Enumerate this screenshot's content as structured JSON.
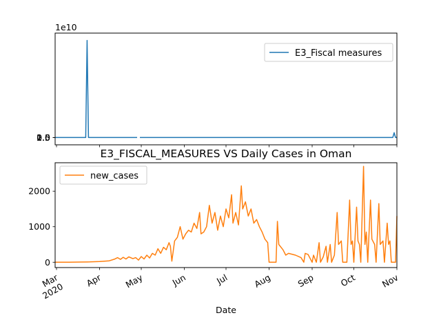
{
  "chart_data": [
    {
      "type": "line",
      "title": "",
      "xlabel": "",
      "ylabel": "",
      "offset_text": "1e10",
      "ylim": [
        -1500000000.0,
        21500000000.0
      ],
      "yticks": [
        0.0,
        0.5,
        1.0,
        1.5,
        2.0
      ],
      "ytick_labels": [
        "0.0",
        "0.5",
        "1.0",
        "1.5",
        "2.0"
      ],
      "legend_position": "upper right",
      "series": [
        {
          "name": "E3_Fiscal measures",
          "color": "#1f77b4",
          "points": [
            [
              "2020-02-29",
              0
            ],
            [
              "2020-03-22",
              0
            ],
            [
              "2020-03-23",
              20000000000.0
            ],
            [
              "2020-03-24",
              0
            ],
            [
              "2020-04-28",
              0
            ],
            [
              "2020-04-29",
              null
            ],
            [
              "2020-04-30",
              0
            ],
            [
              "2020-10-29",
              0
            ],
            [
              "2020-10-30",
              1000000000.0
            ],
            [
              "2020-10-31",
              0
            ],
            [
              "2020-11-01",
              0
            ]
          ]
        }
      ]
    },
    {
      "type": "line",
      "title": "E3_FISCAL_MEASURES VS Daily Cases in Oman",
      "xlabel": "Date",
      "ylabel": "",
      "ylim": [
        -150,
        2800
      ],
      "yticks": [
        0,
        1000,
        2000
      ],
      "ytick_labels": [
        "0",
        "1000",
        "2000"
      ],
      "legend_position": "upper left",
      "series": [
        {
          "name": "new_cases",
          "color": "#ff7f0e",
          "points": [
            [
              "2020-02-29",
              0
            ],
            [
              "2020-03-10",
              0
            ],
            [
              "2020-03-18",
              5
            ],
            [
              "2020-03-25",
              10
            ],
            [
              "2020-04-01",
              20
            ],
            [
              "2020-04-08",
              40
            ],
            [
              "2020-04-12",
              90
            ],
            [
              "2020-04-14",
              130
            ],
            [
              "2020-04-16",
              80
            ],
            [
              "2020-04-18",
              140
            ],
            [
              "2020-04-20",
              90
            ],
            [
              "2020-04-22",
              150
            ],
            [
              "2020-04-25",
              100
            ],
            [
              "2020-04-27",
              130
            ],
            [
              "2020-04-29",
              60
            ],
            [
              "2020-05-01",
              160
            ],
            [
              "2020-05-03",
              90
            ],
            [
              "2020-05-05",
              200
            ],
            [
              "2020-05-07",
              120
            ],
            [
              "2020-05-09",
              250
            ],
            [
              "2020-05-11",
              200
            ],
            [
              "2020-05-13",
              380
            ],
            [
              "2020-05-15",
              250
            ],
            [
              "2020-05-17",
              420
            ],
            [
              "2020-05-19",
              350
            ],
            [
              "2020-05-21",
              550
            ],
            [
              "2020-05-22",
              450
            ],
            [
              "2020-05-23",
              30
            ],
            [
              "2020-05-25",
              600
            ],
            [
              "2020-05-27",
              700
            ],
            [
              "2020-05-29",
              1000
            ],
            [
              "2020-05-31",
              650
            ],
            [
              "2020-06-02",
              800
            ],
            [
              "2020-06-04",
              900
            ],
            [
              "2020-06-06",
              850
            ],
            [
              "2020-06-08",
              1100
            ],
            [
              "2020-06-10",
              950
            ],
            [
              "2020-06-12",
              1400
            ],
            [
              "2020-06-13",
              800
            ],
            [
              "2020-06-15",
              850
            ],
            [
              "2020-06-17",
              1000
            ],
            [
              "2020-06-19",
              1600
            ],
            [
              "2020-06-21",
              1100
            ],
            [
              "2020-06-23",
              1400
            ],
            [
              "2020-06-25",
              900
            ],
            [
              "2020-06-27",
              1300
            ],
            [
              "2020-06-29",
              1000
            ],
            [
              "2020-07-01",
              1500
            ],
            [
              "2020-07-03",
              1250
            ],
            [
              "2020-07-05",
              1900
            ],
            [
              "2020-07-06",
              1100
            ],
            [
              "2020-07-08",
              1400
            ],
            [
              "2020-07-10",
              1050
            ],
            [
              "2020-07-12",
              2150
            ],
            [
              "2020-07-13",
              1500
            ],
            [
              "2020-07-15",
              1700
            ],
            [
              "2020-07-17",
              1300
            ],
            [
              "2020-07-19",
              1500
            ],
            [
              "2020-07-21",
              1100
            ],
            [
              "2020-07-23",
              1200
            ],
            [
              "2020-07-25",
              1000
            ],
            [
              "2020-07-27",
              850
            ],
            [
              "2020-07-29",
              650
            ],
            [
              "2020-07-31",
              550
            ],
            [
              "2020-08-01",
              0
            ],
            [
              "2020-08-04",
              0
            ],
            [
              "2020-08-06",
              0
            ],
            [
              "2020-08-07",
              1150
            ],
            [
              "2020-08-08",
              500
            ],
            [
              "2020-08-11",
              350
            ],
            [
              "2020-08-13",
              200
            ],
            [
              "2020-08-15",
              250
            ],
            [
              "2020-08-20",
              200
            ],
            [
              "2020-08-24",
              130
            ],
            [
              "2020-08-26",
              0
            ],
            [
              "2020-08-27",
              250
            ],
            [
              "2020-08-29",
              220
            ],
            [
              "2020-09-01",
              0
            ],
            [
              "2020-09-02",
              200
            ],
            [
              "2020-09-04",
              0
            ],
            [
              "2020-09-06",
              550
            ],
            [
              "2020-09-07",
              0
            ],
            [
              "2020-09-09",
              150
            ],
            [
              "2020-09-11",
              450
            ],
            [
              "2020-09-12",
              0
            ],
            [
              "2020-09-14",
              500
            ],
            [
              "2020-09-15",
              0
            ],
            [
              "2020-09-17",
              200
            ],
            [
              "2020-09-19",
              1400
            ],
            [
              "2020-09-20",
              500
            ],
            [
              "2020-09-22",
              600
            ],
            [
              "2020-09-23",
              0
            ],
            [
              "2020-09-26",
              0
            ],
            [
              "2020-09-28",
              1750
            ],
            [
              "2020-09-29",
              500
            ],
            [
              "2020-09-30",
              600
            ],
            [
              "2020-10-01",
              0
            ],
            [
              "2020-10-03",
              1550
            ],
            [
              "2020-10-04",
              600
            ],
            [
              "2020-10-05",
              500
            ],
            [
              "2020-10-06",
              0
            ],
            [
              "2020-10-08",
              2700
            ],
            [
              "2020-10-09",
              500
            ],
            [
              "2020-10-10",
              850
            ],
            [
              "2020-10-11",
              0
            ],
            [
              "2020-10-13",
              1750
            ],
            [
              "2020-10-14",
              650
            ],
            [
              "2020-10-16",
              500
            ],
            [
              "2020-10-17",
              0
            ],
            [
              "2020-10-19",
              1650
            ],
            [
              "2020-10-20",
              500
            ],
            [
              "2020-10-22",
              600
            ],
            [
              "2020-10-23",
              0
            ],
            [
              "2020-10-25",
              1100
            ],
            [
              "2020-10-26",
              500
            ],
            [
              "2020-10-27",
              600
            ],
            [
              "2020-10-28",
              0
            ],
            [
              "2020-10-31",
              0
            ],
            [
              "2020-11-01",
              1300
            ]
          ]
        }
      ]
    }
  ],
  "shared_x": {
    "range": [
      "2020-02-29",
      "2020-11-01"
    ],
    "ticks": [
      {
        "date": "2020-03-01",
        "label": "Mar",
        "label2": "2020"
      },
      {
        "date": "2020-04-01",
        "label": "Apr"
      },
      {
        "date": "2020-05-01",
        "label": "May"
      },
      {
        "date": "2020-06-01",
        "label": "Jun"
      },
      {
        "date": "2020-07-01",
        "label": "Jul"
      },
      {
        "date": "2020-08-01",
        "label": "Aug"
      },
      {
        "date": "2020-09-01",
        "label": "Sep"
      },
      {
        "date": "2020-10-01",
        "label": "Oct"
      },
      {
        "date": "2020-11-01",
        "label": "Nov"
      }
    ]
  }
}
